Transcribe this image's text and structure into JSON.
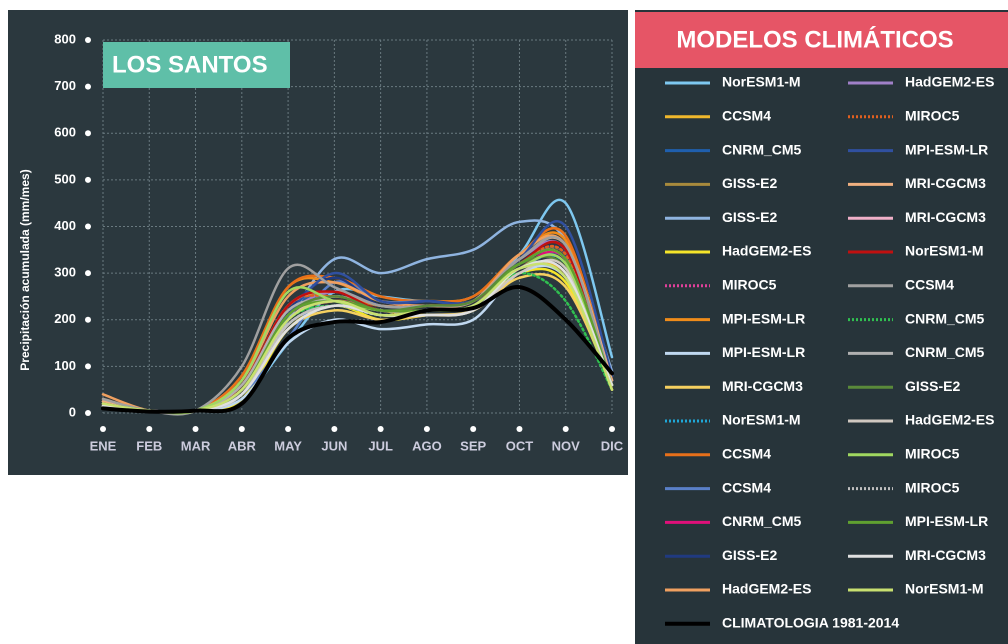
{
  "chart_data": {
    "type": "line",
    "title": "LOS SANTOS",
    "legend_title": "MODELOS CLIMÁTICOS",
    "y_label": "Precipitación acumulada (mm/mes)",
    "categories": [
      "ENE",
      "FEB",
      "MAR",
      "ABR",
      "MAY",
      "JUN",
      "JUL",
      "AGO",
      "SEP",
      "OCT",
      "NOV",
      "DIC"
    ],
    "ylim": [
      0,
      800
    ],
    "yticks": [
      0,
      100,
      200,
      300,
      400,
      500,
      600,
      700,
      800
    ],
    "grid": true,
    "series": [
      {
        "name": "NorESM1-M",
        "color": "#7ec8f0",
        "values": [
          20,
          5,
          5,
          30,
          150,
          260,
          250,
          240,
          250,
          340,
          450,
          120
        ]
      },
      {
        "name": "CCSM4",
        "color": "#f0b82c",
        "values": [
          15,
          4,
          5,
          40,
          200,
          240,
          220,
          210,
          220,
          300,
          300,
          70
        ]
      },
      {
        "name": "CNRM_CM5",
        "color": "#1f5fae",
        "values": [
          20,
          5,
          5,
          60,
          220,
          260,
          230,
          230,
          240,
          330,
          350,
          60
        ]
      },
      {
        "name": "GISS-E2",
        "color": "#a88a3c",
        "values": [
          25,
          5,
          5,
          50,
          230,
          250,
          230,
          230,
          240,
          320,
          340,
          80
        ]
      },
      {
        "name": "GISS-E2",
        "color": "#8fb4e0",
        "values": [
          25,
          5,
          6,
          40,
          200,
          330,
          300,
          330,
          350,
          410,
          370,
          90
        ]
      },
      {
        "name": "HadGEM2-ES",
        "color": "#f5e52a",
        "values": [
          10,
          3,
          5,
          30,
          180,
          230,
          200,
          210,
          220,
          300,
          280,
          60
        ]
      },
      {
        "name": "MIROC5",
        "color": "#e0409a",
        "dotted": true,
        "values": [
          15,
          5,
          5,
          50,
          200,
          240,
          220,
          220,
          230,
          310,
          320,
          60
        ]
      },
      {
        "name": "MPI-ESM-LR",
        "color": "#f08c1a",
        "values": [
          20,
          5,
          5,
          80,
          270,
          280,
          240,
          240,
          250,
          340,
          370,
          70
        ]
      },
      {
        "name": "MPI-ESM-LR",
        "color": "#c0d8f0",
        "values": [
          10,
          3,
          5,
          30,
          150,
          200,
          180,
          190,
          200,
          300,
          290,
          60
        ]
      },
      {
        "name": "MRI-CGCM3",
        "color": "#f5d060",
        "values": [
          15,
          4,
          5,
          40,
          180,
          220,
          200,
          210,
          220,
          290,
          270,
          60
        ]
      },
      {
        "name": "NorESM1-M",
        "color": "#1fa8d8",
        "dotted": true,
        "values": [
          20,
          5,
          5,
          50,
          200,
          250,
          220,
          220,
          230,
          310,
          320,
          70
        ]
      },
      {
        "name": "CCSM4",
        "color": "#e8701a",
        "values": [
          30,
          5,
          5,
          80,
          270,
          290,
          250,
          240,
          250,
          340,
          380,
          60
        ]
      },
      {
        "name": "CCSM4",
        "color": "#5a80c8",
        "values": [
          20,
          5,
          5,
          40,
          160,
          280,
          240,
          240,
          240,
          310,
          330,
          80
        ]
      },
      {
        "name": "CNRM_CM5",
        "color": "#e0107a",
        "values": [
          15,
          5,
          5,
          50,
          210,
          240,
          220,
          220,
          230,
          310,
          330,
          70
        ]
      },
      {
        "name": "GISS-E2",
        "color": "#203a80",
        "values": [
          20,
          5,
          5,
          60,
          220,
          290,
          230,
          240,
          240,
          320,
          340,
          60
        ]
      },
      {
        "name": "HadGEM2-ES",
        "color": "#f0a060",
        "values": [
          40,
          5,
          5,
          70,
          250,
          280,
          240,
          230,
          240,
          340,
          360,
          50
        ]
      },
      {
        "name": "HadGEM2-ES",
        "color": "#a080c8",
        "values": [
          20,
          5,
          5,
          50,
          210,
          260,
          230,
          230,
          240,
          330,
          350,
          70
        ]
      },
      {
        "name": "MIROC5",
        "color": "#e06020",
        "dotted": true,
        "values": [
          20,
          5,
          5,
          60,
          230,
          250,
          230,
          230,
          240,
          320,
          340,
          60
        ]
      },
      {
        "name": "MPI-ESM-LR",
        "color": "#3050a0",
        "values": [
          20,
          5,
          5,
          50,
          210,
          300,
          240,
          240,
          240,
          330,
          400,
          80
        ]
      },
      {
        "name": "MRI-CGCM3",
        "color": "#f0b080",
        "values": [
          25,
          5,
          5,
          60,
          230,
          260,
          230,
          230,
          240,
          330,
          360,
          70
        ]
      },
      {
        "name": "MRI-CGCM3",
        "color": "#f0b0c8",
        "values": [
          20,
          5,
          5,
          50,
          200,
          250,
          220,
          220,
          230,
          320,
          330,
          60
        ]
      },
      {
        "name": "NorESM1-M",
        "color": "#c01010",
        "values": [
          15,
          5,
          5,
          60,
          230,
          260,
          220,
          230,
          240,
          320,
          350,
          50
        ]
      },
      {
        "name": "CCSM4",
        "color": "#a0a0a0",
        "values": [
          30,
          5,
          5,
          100,
          310,
          270,
          230,
          230,
          240,
          330,
          360,
          60
        ]
      },
      {
        "name": "CNRM_CM5",
        "color": "#30c050",
        "dotted": true,
        "values": [
          15,
          5,
          5,
          50,
          200,
          230,
          210,
          220,
          230,
          300,
          240,
          50
        ]
      },
      {
        "name": "CNRM_CM5",
        "color": "#b0b0b0",
        "values": [
          20,
          5,
          5,
          60,
          220,
          240,
          220,
          220,
          230,
          320,
          330,
          60
        ]
      },
      {
        "name": "GISS-E2",
        "color": "#5a8a3a",
        "values": [
          20,
          5,
          5,
          50,
          210,
          250,
          220,
          230,
          240,
          320,
          310,
          60
        ]
      },
      {
        "name": "HadGEM2-ES",
        "color": "#d0c8c0",
        "values": [
          15,
          5,
          5,
          40,
          190,
          230,
          210,
          210,
          220,
          300,
          310,
          60
        ]
      },
      {
        "name": "MIROC5",
        "color": "#a0d860",
        "values": [
          20,
          5,
          5,
          70,
          260,
          240,
          220,
          220,
          230,
          310,
          320,
          50
        ]
      },
      {
        "name": "MIROC5",
        "color": "#c0c0c0",
        "dotted": true,
        "values": [
          15,
          5,
          5,
          40,
          190,
          230,
          210,
          220,
          230,
          310,
          300,
          60
        ]
      },
      {
        "name": "MPI-ESM-LR",
        "color": "#60a030",
        "values": [
          20,
          5,
          5,
          50,
          210,
          240,
          220,
          220,
          230,
          320,
          330,
          60
        ]
      },
      {
        "name": "MRI-CGCM3",
        "color": "#e0e0e0",
        "values": [
          15,
          5,
          5,
          40,
          180,
          230,
          210,
          210,
          220,
          310,
          300,
          60
        ]
      },
      {
        "name": "NorESM1-M",
        "color": "#c8e070",
        "values": [
          20,
          5,
          5,
          50,
          200,
          240,
          210,
          220,
          230,
          310,
          290,
          50
        ]
      },
      {
        "name": "CLIMATOLOGIA 1981-2014",
        "color": "#000000",
        "line_width": 4,
        "values": [
          10,
          3,
          5,
          20,
          160,
          195,
          195,
          220,
          225,
          270,
          200,
          85
        ]
      }
    ]
  }
}
